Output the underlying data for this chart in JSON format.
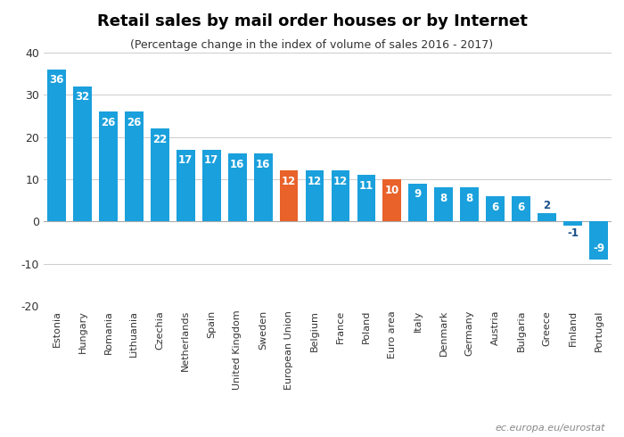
{
  "title": "Retail sales by mail order houses or by Internet",
  "subtitle": "(Percentage change in the index of volume of sales 2016 - 2017)",
  "categories": [
    "Estonia",
    "Hungary",
    "Romania",
    "Lithuania",
    "Czechia",
    "Netherlands",
    "Spain",
    "United Kingdom",
    "Sweden",
    "European Union",
    "Belgium",
    "France",
    "Poland",
    "Euro area",
    "Italy",
    "Denmark",
    "Germany",
    "Austria",
    "Bulgaria",
    "Greece",
    "Finland",
    "Portugal"
  ],
  "values": [
    36,
    32,
    26,
    26,
    22,
    17,
    17,
    16,
    16,
    12,
    12,
    12,
    11,
    10,
    9,
    8,
    8,
    6,
    6,
    2,
    -1,
    -9
  ],
  "colors": [
    "#1aa0dc",
    "#1aa0dc",
    "#1aa0dc",
    "#1aa0dc",
    "#1aa0dc",
    "#1aa0dc",
    "#1aa0dc",
    "#1aa0dc",
    "#1aa0dc",
    "#e8622a",
    "#1aa0dc",
    "#1aa0dc",
    "#1aa0dc",
    "#e8622a",
    "#1aa0dc",
    "#1aa0dc",
    "#1aa0dc",
    "#1aa0dc",
    "#1aa0dc",
    "#1aa0dc",
    "#1aa0dc",
    "#1aa0dc"
  ],
  "ylim": [
    -20,
    40
  ],
  "yticks": [
    -20,
    -10,
    0,
    10,
    20,
    30,
    40
  ],
  "label_color_inside": "#ffffff",
  "label_color_outside": "#1a4f8a",
  "label_color_negative_inside": "#ffffff",
  "watermark": "ec.europa.eu/eurostat",
  "background_color": "#ffffff"
}
